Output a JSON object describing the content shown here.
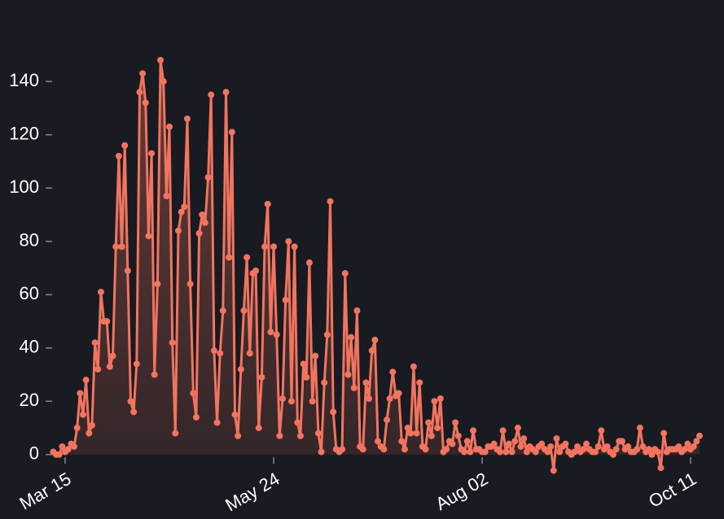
{
  "chart_data": {
    "type": "area",
    "x": [
      "Mar 11",
      "Mar 12",
      "Mar 13",
      "Mar 14",
      "Mar 15",
      "Mar 16",
      "Mar 17",
      "Mar 18",
      "Mar 19",
      "Mar 20",
      "Mar 21",
      "Mar 22",
      "Mar 23",
      "Mar 24",
      "Mar 25",
      "Mar 26",
      "Mar 27",
      "Mar 28",
      "Mar 29",
      "Mar 30",
      "Mar 31",
      "Apr 01",
      "Apr 02",
      "Apr 03",
      "Apr 04",
      "Apr 05",
      "Apr 06",
      "Apr 07",
      "Apr 08",
      "Apr 09",
      "Apr 10",
      "Apr 11",
      "Apr 12",
      "Apr 13",
      "Apr 14",
      "Apr 15",
      "Apr 16",
      "Apr 17",
      "Apr 18",
      "Apr 19",
      "Apr 20",
      "Apr 21",
      "Apr 22",
      "Apr 23",
      "Apr 24",
      "Apr 25",
      "Apr 26",
      "Apr 27",
      "Apr 28",
      "Apr 29",
      "Apr 30",
      "May 01",
      "May 02",
      "May 03",
      "May 04",
      "May 05",
      "May 06",
      "May 07",
      "May 08",
      "May 09",
      "May 10",
      "May 11",
      "May 12",
      "May 13",
      "May 14",
      "May 15",
      "May 16",
      "May 17",
      "May 18",
      "May 19",
      "May 20",
      "May 21",
      "May 22",
      "May 23",
      "May 24",
      "May 25",
      "May 26",
      "May 27",
      "May 28",
      "May 29",
      "May 30",
      "May 31",
      "Jun 01",
      "Jun 02",
      "Jun 03",
      "Jun 04",
      "Jun 05",
      "Jun 06",
      "Jun 07",
      "Jun 08",
      "Jun 09",
      "Jun 10",
      "Jun 11",
      "Jun 12",
      "Jun 13",
      "Jun 14",
      "Jun 15",
      "Jun 16",
      "Jun 17",
      "Jun 18",
      "Jun 19",
      "Jun 20",
      "Jun 21",
      "Jun 22",
      "Jun 23",
      "Jun 24",
      "Jun 25",
      "Jun 26",
      "Jun 27",
      "Jun 28",
      "Jun 29",
      "Jun 30",
      "Jul 01",
      "Jul 02",
      "Jul 03",
      "Jul 04",
      "Jul 05",
      "Jul 06",
      "Jul 07",
      "Jul 08",
      "Jul 09",
      "Jul 10",
      "Jul 11",
      "Jul 12",
      "Jul 13",
      "Jul 14",
      "Jul 15",
      "Jul 16",
      "Jul 17",
      "Jul 18",
      "Jul 19",
      "Jul 20",
      "Jul 21",
      "Jul 22",
      "Jul 23",
      "Jul 24",
      "Jul 25",
      "Jul 26",
      "Jul 27",
      "Jul 28",
      "Jul 29",
      "Jul 30",
      "Jul 31",
      "Aug 01",
      "Aug 02",
      "Aug 03",
      "Aug 04",
      "Aug 05",
      "Aug 06",
      "Aug 07",
      "Aug 08",
      "Aug 09",
      "Aug 10",
      "Aug 11",
      "Aug 12",
      "Aug 13",
      "Aug 14",
      "Aug 15",
      "Aug 16",
      "Aug 17",
      "Aug 18",
      "Aug 19",
      "Aug 20",
      "Aug 21",
      "Aug 22",
      "Aug 23",
      "Aug 24",
      "Aug 25",
      "Aug 26",
      "Aug 27",
      "Aug 28",
      "Aug 29",
      "Aug 30",
      "Aug 31",
      "Sep 01",
      "Sep 02",
      "Sep 03",
      "Sep 04",
      "Sep 05",
      "Sep 06",
      "Sep 07",
      "Sep 08",
      "Sep 09",
      "Sep 10",
      "Sep 11",
      "Sep 12",
      "Sep 13",
      "Sep 14",
      "Sep 15",
      "Sep 16",
      "Sep 17",
      "Sep 18",
      "Sep 19",
      "Sep 20",
      "Sep 21",
      "Sep 22",
      "Sep 23",
      "Sep 24",
      "Sep 25",
      "Sep 26",
      "Sep 27",
      "Sep 28",
      "Sep 29",
      "Sep 30",
      "Oct 01",
      "Oct 02",
      "Oct 03",
      "Oct 04",
      "Oct 05",
      "Oct 06",
      "Oct 07",
      "Oct 08",
      "Oct 09",
      "Oct 10",
      "Oct 11",
      "Oct 12",
      "Oct 13",
      "Oct 14"
    ],
    "values": [
      1,
      0,
      0,
      3,
      1,
      2,
      4,
      3,
      10,
      23,
      15,
      28,
      8,
      11,
      42,
      32,
      61,
      50,
      50,
      33,
      37,
      78,
      112,
      78,
      116,
      69,
      20,
      16,
      34,
      136,
      143,
      132,
      82,
      113,
      30,
      64,
      148,
      140,
      97,
      123,
      42,
      8,
      84,
      91,
      93,
      126,
      64,
      23,
      14,
      83,
      90,
      87,
      104,
      135,
      39,
      12,
      38,
      54,
      136,
      74,
      121,
      15,
      7,
      32,
      54,
      74,
      38,
      68,
      69,
      10,
      29,
      78,
      94,
      46,
      78,
      45,
      7,
      21,
      58,
      80,
      20,
      78,
      12,
      7,
      34,
      29,
      72,
      20,
      37,
      8,
      1,
      27,
      45,
      95,
      16,
      2,
      1,
      2,
      68,
      30,
      44,
      25,
      54,
      3,
      2,
      27,
      21,
      39,
      43,
      5,
      3,
      2,
      13,
      21,
      31,
      22,
      23,
      5,
      2,
      10,
      8,
      33,
      8,
      27,
      3,
      2,
      12,
      7,
      20,
      10,
      21,
      1,
      2,
      5,
      4,
      12,
      7,
      2,
      1,
      5,
      1,
      9,
      2,
      2,
      1,
      1,
      3,
      3,
      4,
      2,
      1,
      9,
      1,
      4,
      1,
      5,
      10,
      3,
      6,
      1,
      3,
      2,
      1,
      3,
      4,
      2,
      1,
      3,
      -6,
      6,
      1,
      3,
      4,
      1,
      0,
      1,
      3,
      1,
      2,
      4,
      2,
      1,
      1,
      3,
      9,
      2,
      3,
      1,
      0,
      2,
      5,
      5,
      2,
      3,
      1,
      1,
      2,
      10,
      3,
      1,
      2,
      0,
      2,
      1,
      -5,
      8,
      1,
      2,
      2,
      2,
      3,
      1,
      2,
      4,
      2,
      3,
      5,
      7
    ],
    "color": "#f2745f",
    "xticks": [
      "Mar 15",
      "May 24",
      "Aug 02",
      "Oct 11"
    ],
    "ylim": [
      -8,
      155
    ],
    "yticks": [
      0,
      20,
      40,
      60,
      80,
      100,
      120,
      140
    ]
  }
}
